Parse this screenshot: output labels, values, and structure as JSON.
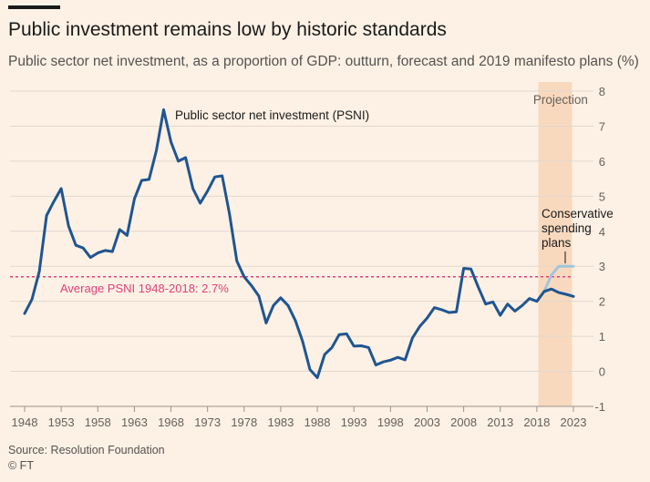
{
  "title": "Public investment remains low by historic standards",
  "subtitle": "Public sector net investment, as a proportion of GDP: outturn, forecast and 2019 manifesto plans (%)",
  "source": "Source: Resolution Foundation",
  "copyright": "© FT",
  "colors": {
    "background": "#fdf1e5",
    "psni": "#1f5591",
    "conservative": "#9fc5de",
    "average": "#e0407a",
    "projection": "#f8d9be",
    "grid": "#e2d8cf"
  },
  "chart_data": {
    "type": "line",
    "title": "Public investment remains low by historic standards",
    "subtitle": "Public sector net investment, as a proportion of GDP: outturn, forecast and 2019 manifesto plans (%)",
    "xlabel": "",
    "ylabel": "",
    "xlim": [
      1948,
      2023
    ],
    "ylim": [
      -1,
      8
    ],
    "x_ticks": [
      1948,
      1953,
      1958,
      1963,
      1968,
      1973,
      1978,
      1983,
      1988,
      1993,
      1998,
      2003,
      2008,
      2013,
      2018,
      2023
    ],
    "y_ticks": [
      -1,
      0,
      1,
      2,
      3,
      4,
      5,
      6,
      7,
      8
    ],
    "y_axis_position": "right",
    "grid": "horizontal",
    "projection": {
      "label": "Projection",
      "from": 2018.2,
      "to": 2022.8
    },
    "average": {
      "label": "Average PSNI 1948-2018: 2.7%",
      "value": 2.7
    },
    "series": [
      {
        "name": "Public sector net investment (PSNI)",
        "x": [
          1948,
          1949,
          1950,
          1951,
          1952,
          1953,
          1954,
          1955,
          1956,
          1957,
          1958,
          1959,
          1960,
          1961,
          1962,
          1963,
          1964,
          1965,
          1966,
          1967,
          1968,
          1969,
          1970,
          1971,
          1972,
          1973,
          1974,
          1975,
          1976,
          1977,
          1978,
          1979,
          1980,
          1981,
          1982,
          1983,
          1984,
          1985,
          1986,
          1987,
          1988,
          1989,
          1990,
          1991,
          1992,
          1993,
          1994,
          1995,
          1996,
          1997,
          1998,
          1999,
          2000,
          2001,
          2002,
          2003,
          2004,
          2005,
          2006,
          2007,
          2008,
          2009,
          2010,
          2011,
          2012,
          2013,
          2014,
          2015,
          2016,
          2017,
          2018,
          2019,
          2020,
          2021,
          2022,
          2023
        ],
        "values": [
          1.65,
          2.05,
          2.85,
          4.45,
          4.85,
          5.22,
          4.15,
          3.6,
          3.52,
          3.25,
          3.38,
          3.45,
          3.42,
          4.05,
          3.88,
          4.92,
          5.45,
          5.48,
          6.3,
          7.47,
          6.55,
          6.0,
          6.1,
          5.22,
          4.8,
          5.15,
          5.55,
          5.58,
          4.5,
          3.15,
          2.7,
          2.45,
          2.15,
          1.38,
          1.88,
          2.1,
          1.88,
          1.45,
          0.85,
          0.05,
          -0.18,
          0.48,
          0.68,
          1.05,
          1.07,
          0.72,
          0.73,
          0.68,
          0.18,
          0.27,
          0.32,
          0.4,
          0.33,
          0.95,
          1.28,
          1.52,
          1.82,
          1.76,
          1.68,
          1.7,
          2.94,
          2.92,
          2.4,
          1.92,
          1.98,
          1.6,
          1.92,
          1.72,
          1.88,
          2.08,
          2.0,
          2.28,
          2.35,
          2.25,
          2.2,
          2.14
        ]
      },
      {
        "name": "Conservative spending plans",
        "label_lines": [
          "Conservative",
          "spending",
          "plans"
        ],
        "x": [
          2019,
          2020,
          2021,
          2022,
          2023
        ],
        "values": [
          2.28,
          2.75,
          3.0,
          3.0,
          3.0
        ]
      }
    ]
  }
}
